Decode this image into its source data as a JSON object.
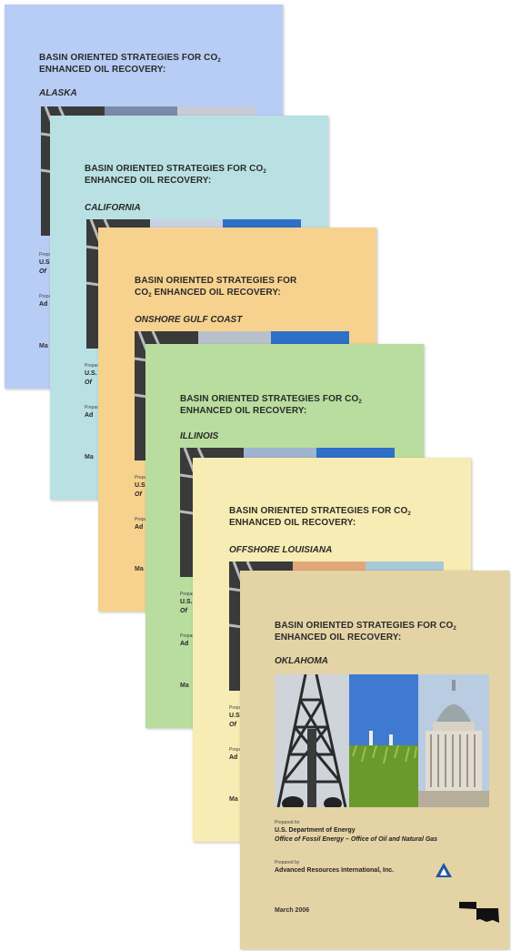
{
  "covers": [
    {
      "id": "alaska",
      "bg": "#b8cdf5",
      "title1": "BASIN ORIENTED STRATEGIES FOR CO",
      "title1_sub": "2",
      "title2": "ENHANCED OIL RECOVERY:",
      "region": "ALASKA",
      "prepared_for": "Prepared for",
      "agency_short": "U.S.",
      "office_short": "Of",
      "prepared_by": "Prepared by",
      "ari_short": "Ad",
      "date_short": "Ma"
    },
    {
      "id": "california",
      "bg": "#b9e1e3",
      "title1": "BASIN ORIENTED STRATEGIES FOR CO",
      "title1_sub": "2",
      "title2": "ENHANCED OIL RECOVERY:",
      "region": "CALIFORNIA",
      "prepared_for": "Prepared for",
      "agency_short": "U.S.",
      "office_short": "Of",
      "prepared_by": "Prepared by",
      "ari_short": "Ad",
      "date_short": "Ma"
    },
    {
      "id": "gulf",
      "bg": "#f7d28f",
      "title1": "BASIN ORIENTED STRATEGIES FOR",
      "title1b": "CO",
      "title1_sub": "2",
      "title2": "ENHANCED OIL RECOVERY:",
      "region": "ONSHORE GULF COAST",
      "prepared_for": "Prepared for",
      "agency_short": "U.S.",
      "office_short": "Of",
      "prepared_by": "Prepared by",
      "ari_short": "Ad",
      "date_short": "Ma"
    },
    {
      "id": "illinois",
      "bg": "#b8dd9e",
      "title1": "BASIN ORIENTED STRATEGIES FOR CO",
      "title1_sub": "2",
      "title2": "ENHANCED OIL RECOVERY:",
      "region": "ILLINOIS",
      "prepared_for": "Prepared for",
      "agency_short": "U.S.",
      "office_short": "Of",
      "prepared_by": "Prepared by",
      "ari_short": "Ad",
      "date_short": "Ma"
    },
    {
      "id": "louisiana",
      "bg": "#f7ecb3",
      "title1": "BASIN ORIENTED STRATEGIES FOR CO",
      "title1_sub": "2",
      "title2": "ENHANCED OIL RECOVERY:",
      "region": "OFFSHORE LOUISIANA",
      "prepared_for": "Prepared for",
      "agency_short": "U.S.",
      "office_short": "Of",
      "prepared_by": "Prepared by",
      "ari_short": "Ad",
      "date_short": "Ma"
    }
  ],
  "front": {
    "bg": "#e4d3a5",
    "title1": "BASIN ORIENTED STRATEGIES FOR CO",
    "title1_sub": "2",
    "title2": "ENHANCED OIL RECOVERY:",
    "region": "OKLAHOMA",
    "prepared_for": "Prepared for",
    "agency": "U.S. Department of Energy",
    "office": "Office of Fossil Energy – Office of Oil and Natural Gas",
    "prepared_by": "Prepared by",
    "ari": "Advanced Resources International, Inc.",
    "date": "March 2006",
    "logo_icon": "ari-triangle-logo-icon",
    "map_icon": "oklahoma-state-outline-icon"
  }
}
